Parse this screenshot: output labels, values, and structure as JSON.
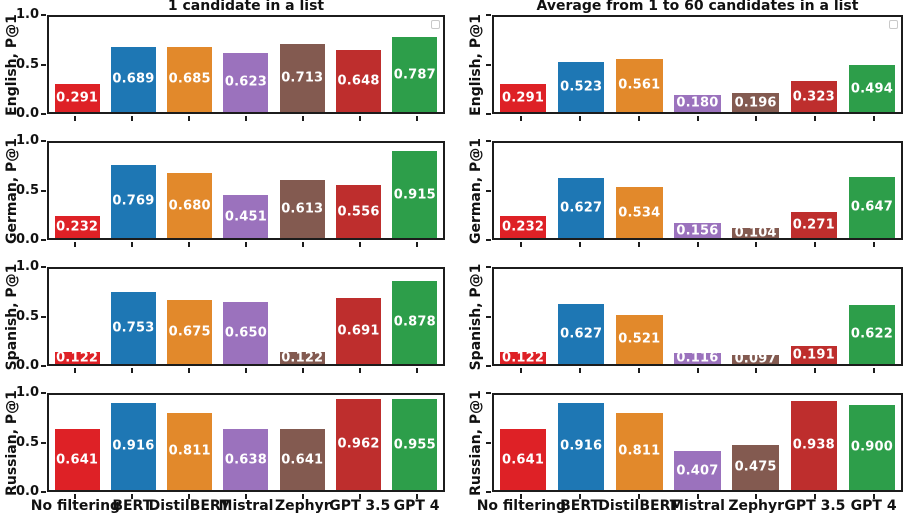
{
  "figure": {
    "col_titles": [
      "1 candidate in a list",
      "Average from 1 to 60 candidates in a list"
    ],
    "row_labels": [
      "English, P@1",
      "German, P@1",
      "Spanish, P@1",
      "Russian, P@1"
    ],
    "x_categories": [
      "No filtering",
      "BERT",
      "DistilBERT",
      "Mistral",
      "Zephyr",
      "GPT 3.5",
      "GPT 4"
    ],
    "y_tick_labels": [
      "1.0",
      "0.5",
      "0.0"
    ],
    "bar_colors": [
      "#de2126",
      "#1e77b4",
      "#e2892b",
      "#9b72bd",
      "#835a50",
      "#be2e2d",
      "#2d9e4a"
    ],
    "frame_color": "#1c1c1c",
    "label_text_color": "#ffffff"
  },
  "chart_data": [
    {
      "type": "bar",
      "title": "1 candidate in a list",
      "ylabel": "English, P@1",
      "categories": [
        "No filtering",
        "BERT",
        "DistilBERT",
        "Mistral",
        "Zephyr",
        "GPT 3.5",
        "GPT 4"
      ],
      "values": [
        0.291,
        0.689,
        0.685,
        0.623,
        0.713,
        0.648,
        0.787
      ],
      "labels": [
        "0.291",
        "0.689",
        "0.685",
        "0.623",
        "0.713",
        "0.648",
        "0.787"
      ],
      "ylim": [
        0,
        1
      ],
      "yticks": [
        0.0,
        0.5,
        1.0
      ],
      "grid": false,
      "legend": "empty-stub-top-right",
      "show_ytick_labels": true,
      "show_xtick_labels": false,
      "has_legend": true
    },
    {
      "type": "bar",
      "title": "Average from 1 to 60 candidates in a list",
      "ylabel": "English, P@1",
      "categories": [
        "No filtering",
        "BERT",
        "DistilBERT",
        "Mistral",
        "Zephyr",
        "GPT 3.5",
        "GPT 4"
      ],
      "values": [
        0.291,
        0.523,
        0.561,
        0.18,
        0.196,
        0.323,
        0.494
      ],
      "labels": [
        "0.291",
        "0.523",
        "0.561",
        "0.180",
        "0.196",
        "0.323",
        "0.494"
      ],
      "ylim": [
        0,
        1
      ],
      "yticks": [
        0.0,
        0.5,
        1.0
      ],
      "grid": false,
      "legend": "empty-stub-top-right",
      "show_ytick_labels": false,
      "show_xtick_labels": false,
      "has_legend": true
    },
    {
      "type": "bar",
      "title": "",
      "ylabel": "German, P@1",
      "categories": [
        "No filtering",
        "BERT",
        "DistilBERT",
        "Mistral",
        "Zephyr",
        "GPT 3.5",
        "GPT 4"
      ],
      "values": [
        0.232,
        0.769,
        0.68,
        0.451,
        0.613,
        0.556,
        0.915
      ],
      "labels": [
        "0.232",
        "0.769",
        "0.680",
        "0.451",
        "0.613",
        "0.556",
        "0.915"
      ],
      "ylim": [
        0,
        1
      ],
      "yticks": [
        0.0,
        0.5,
        1.0
      ],
      "grid": false,
      "legend": "none",
      "show_ytick_labels": true,
      "show_xtick_labels": false,
      "has_legend": false
    },
    {
      "type": "bar",
      "title": "",
      "ylabel": "German, P@1",
      "categories": [
        "No filtering",
        "BERT",
        "DistilBERT",
        "Mistral",
        "Zephyr",
        "GPT 3.5",
        "GPT 4"
      ],
      "values": [
        0.232,
        0.627,
        0.534,
        0.156,
        0.104,
        0.271,
        0.647
      ],
      "labels": [
        "0.232",
        "0.627",
        "0.534",
        "0.156",
        "0.104",
        "0.271",
        "0.647"
      ],
      "ylim": [
        0,
        1
      ],
      "yticks": [
        0.0,
        0.5,
        1.0
      ],
      "grid": false,
      "legend": "none",
      "show_ytick_labels": false,
      "show_xtick_labels": false,
      "has_legend": false
    },
    {
      "type": "bar",
      "title": "",
      "ylabel": "Spanish, P@1",
      "categories": [
        "No filtering",
        "BERT",
        "DistilBERT",
        "Mistral",
        "Zephyr",
        "GPT 3.5",
        "GPT 4"
      ],
      "values": [
        0.122,
        0.753,
        0.675,
        0.65,
        0.122,
        0.691,
        0.878
      ],
      "labels": [
        "0.122",
        "0.753",
        "0.675",
        "0.650",
        "0.122",
        "0.691",
        "0.878"
      ],
      "ylim": [
        0,
        1
      ],
      "yticks": [
        0.0,
        0.5,
        1.0
      ],
      "grid": false,
      "legend": "none",
      "show_ytick_labels": true,
      "show_xtick_labels": false,
      "has_legend": false
    },
    {
      "type": "bar",
      "title": "",
      "ylabel": "Spanish, P@1",
      "categories": [
        "No filtering",
        "BERT",
        "DistilBERT",
        "Mistral",
        "Zephyr",
        "GPT 3.5",
        "GPT 4"
      ],
      "values": [
        0.122,
        0.627,
        0.521,
        0.116,
        0.097,
        0.191,
        0.622
      ],
      "labels": [
        "0.122",
        "0.627",
        "0.521",
        "0.116",
        "0.097",
        "0.191",
        "0.622"
      ],
      "ylim": [
        0,
        1
      ],
      "yticks": [
        0.0,
        0.5,
        1.0
      ],
      "grid": false,
      "legend": "none",
      "show_ytick_labels": false,
      "show_xtick_labels": false,
      "has_legend": false
    },
    {
      "type": "bar",
      "title": "",
      "ylabel": "Russian, P@1",
      "categories": [
        "No filtering",
        "BERT",
        "DistilBERT",
        "Mistral",
        "Zephyr",
        "GPT 3.5",
        "GPT 4"
      ],
      "values": [
        0.641,
        0.916,
        0.811,
        0.638,
        0.641,
        0.962,
        0.955
      ],
      "labels": [
        "0.641",
        "0.916",
        "0.811",
        "0.638",
        "0.641",
        "0.962",
        "0.955"
      ],
      "ylim": [
        0,
        1
      ],
      "yticks": [
        0.0,
        0.5,
        1.0
      ],
      "grid": false,
      "legend": "none",
      "show_ytick_labels": true,
      "show_xtick_labels": true,
      "has_legend": false
    },
    {
      "type": "bar",
      "title": "",
      "ylabel": "Russian, P@1",
      "categories": [
        "No filtering",
        "BERT",
        "DistilBERT",
        "Mistral",
        "Zephyr",
        "GPT 3.5",
        "GPT 4"
      ],
      "values": [
        0.641,
        0.916,
        0.811,
        0.407,
        0.475,
        0.938,
        0.9
      ],
      "labels": [
        "0.641",
        "0.916",
        "0.811",
        "0.407",
        "0.475",
        "0.938",
        "0.900"
      ],
      "ylim": [
        0,
        1
      ],
      "yticks": [
        0.0,
        0.5,
        1.0
      ],
      "grid": false,
      "legend": "none",
      "show_ytick_labels": false,
      "show_xtick_labels": true,
      "has_legend": false
    }
  ]
}
